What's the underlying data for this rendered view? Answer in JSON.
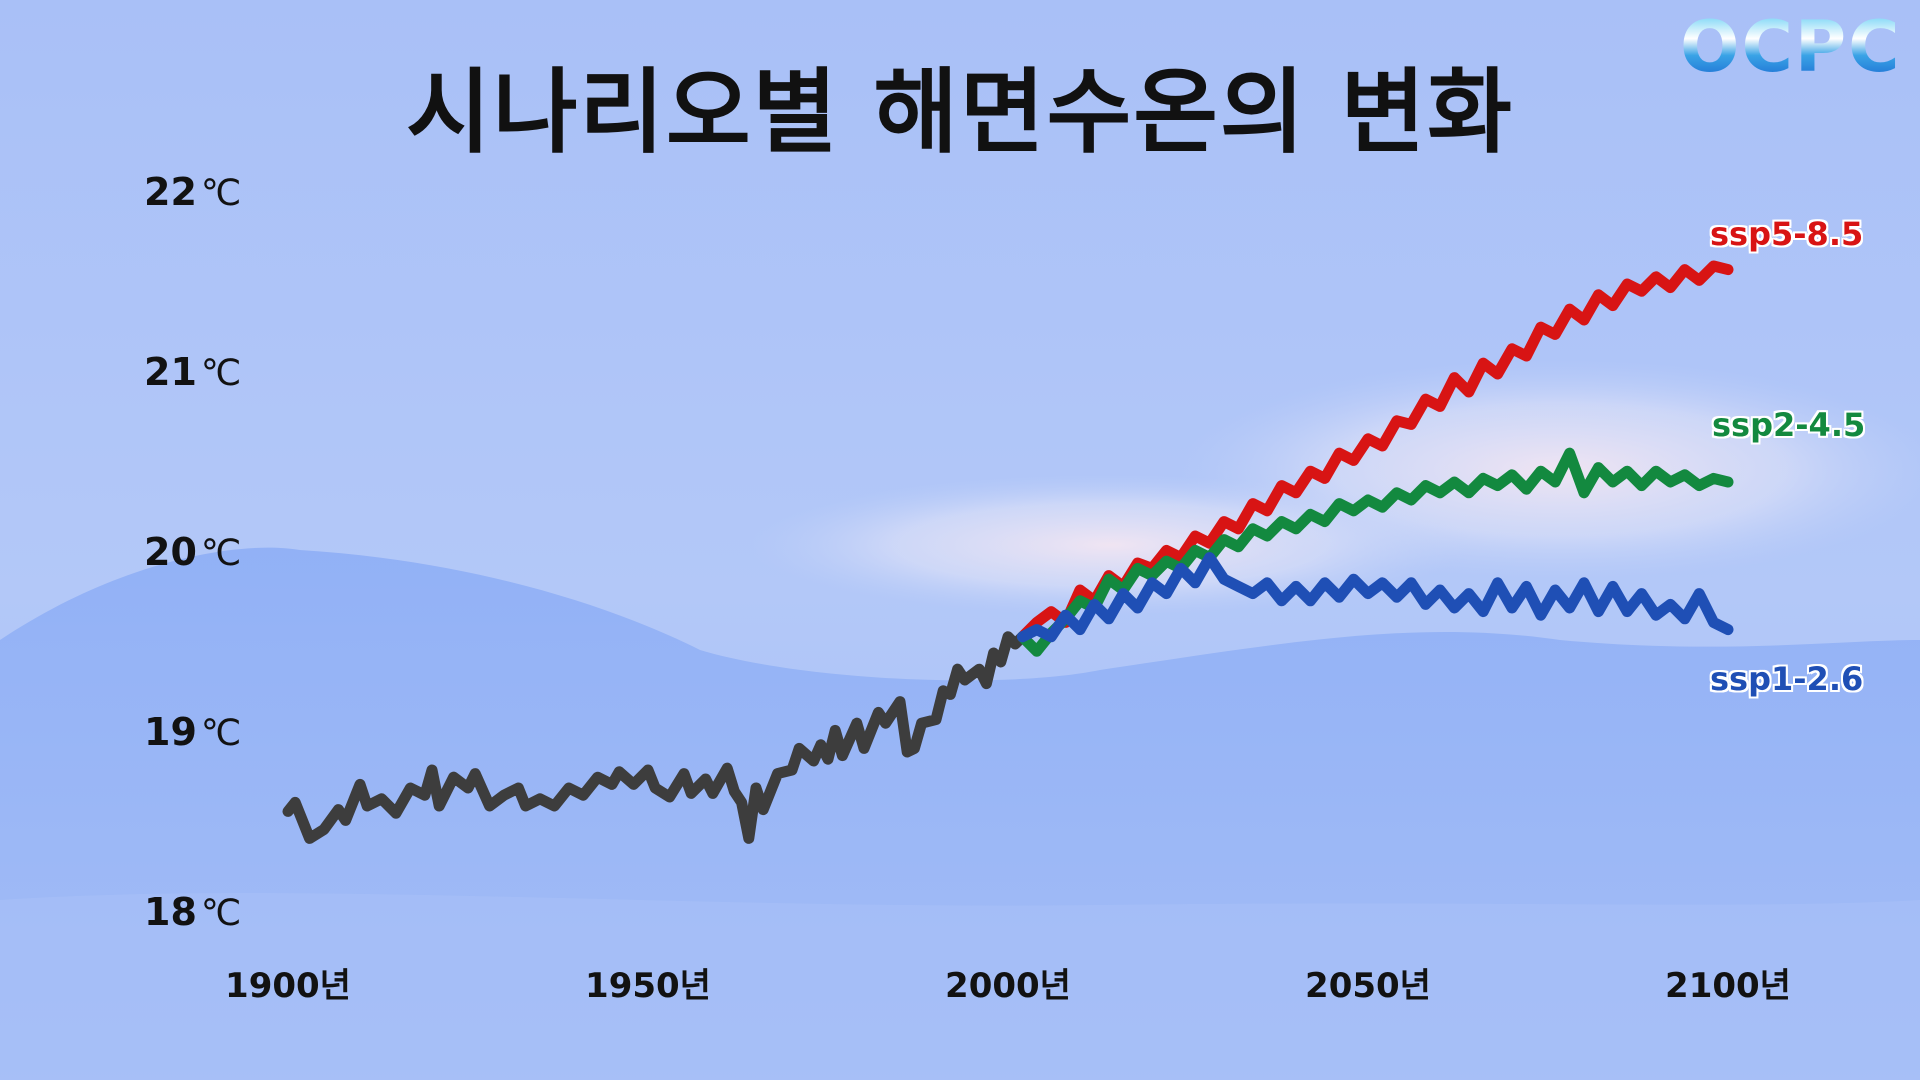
{
  "title": "시나리오별 해면수온의 변화",
  "logo": "OCPC",
  "chart_data": {
    "type": "line",
    "title": "시나리오별 해면수온의 변화",
    "xlabel": "",
    "ylabel": "",
    "xlim": [
      1900,
      2100
    ],
    "ylim": [
      18,
      22
    ],
    "y_ticks": [
      {
        "value": 22,
        "num": "22",
        "unit": "℃"
      },
      {
        "value": 21,
        "num": "21",
        "unit": "℃"
      },
      {
        "value": 20,
        "num": "20",
        "unit": "℃"
      },
      {
        "value": 19,
        "num": "19",
        "unit": "℃"
      },
      {
        "value": 18,
        "num": "18",
        "unit": "℃"
      }
    ],
    "x_ticks": [
      {
        "value": 1900,
        "label": "1900년"
      },
      {
        "value": 1950,
        "label": "1950년"
      },
      {
        "value": 2000,
        "label": "2000년"
      },
      {
        "value": 2050,
        "label": "2050년"
      },
      {
        "value": 2100,
        "label": "2100년"
      }
    ],
    "grid": false,
    "series": [
      {
        "name": "",
        "color": "#3d3d3d",
        "points": [
          [
            1900,
            18.57
          ],
          [
            1901,
            18.62
          ],
          [
            1903,
            18.42
          ],
          [
            1905,
            18.47
          ],
          [
            1907,
            18.58
          ],
          [
            1908,
            18.52
          ],
          [
            1910,
            18.72
          ],
          [
            1911,
            18.6
          ],
          [
            1913,
            18.64
          ],
          [
            1915,
            18.56
          ],
          [
            1917,
            18.7
          ],
          [
            1919,
            18.66
          ],
          [
            1920,
            18.8
          ],
          [
            1921,
            18.6
          ],
          [
            1923,
            18.76
          ],
          [
            1925,
            18.7
          ],
          [
            1926,
            18.78
          ],
          [
            1928,
            18.6
          ],
          [
            1930,
            18.66
          ],
          [
            1932,
            18.7
          ],
          [
            1933,
            18.6
          ],
          [
            1935,
            18.64
          ],
          [
            1937,
            18.6
          ],
          [
            1939,
            18.7
          ],
          [
            1941,
            18.66
          ],
          [
            1943,
            18.76
          ],
          [
            1945,
            18.72
          ],
          [
            1946,
            18.79
          ],
          [
            1948,
            18.72
          ],
          [
            1950,
            18.8
          ],
          [
            1951,
            18.7
          ],
          [
            1953,
            18.65
          ],
          [
            1955,
            18.78
          ],
          [
            1956,
            18.67
          ],
          [
            1958,
            18.75
          ],
          [
            1959,
            18.67
          ],
          [
            1961,
            18.81
          ],
          [
            1962,
            18.68
          ],
          [
            1963,
            18.62
          ],
          [
            1964,
            18.42
          ],
          [
            1965,
            18.7
          ],
          [
            1966,
            18.58
          ],
          [
            1968,
            18.78
          ],
          [
            1970,
            18.8
          ],
          [
            1971,
            18.92
          ],
          [
            1973,
            18.85
          ],
          [
            1974,
            18.94
          ],
          [
            1975,
            18.86
          ],
          [
            1976,
            19.02
          ],
          [
            1977,
            18.88
          ],
          [
            1979,
            19.06
          ],
          [
            1980,
            18.92
          ],
          [
            1982,
            19.12
          ],
          [
            1983,
            19.06
          ],
          [
            1985,
            19.18
          ],
          [
            1986,
            18.9
          ],
          [
            1987,
            18.92
          ],
          [
            1988,
            19.06
          ],
          [
            1990,
            19.08
          ],
          [
            1991,
            19.24
          ],
          [
            1992,
            19.22
          ],
          [
            1993,
            19.36
          ],
          [
            1994,
            19.3
          ],
          [
            1996,
            19.36
          ],
          [
            1997,
            19.28
          ],
          [
            1998,
            19.45
          ],
          [
            1999,
            19.4
          ],
          [
            2000,
            19.54
          ],
          [
            2001,
            19.5
          ],
          [
            2002,
            19.54
          ]
        ]
      },
      {
        "name": "ssp5-8.5",
        "color": "#d81414",
        "points": [
          [
            2002,
            19.54
          ],
          [
            2004,
            19.62
          ],
          [
            2006,
            19.68
          ],
          [
            2008,
            19.62
          ],
          [
            2010,
            19.8
          ],
          [
            2012,
            19.74
          ],
          [
            2014,
            19.88
          ],
          [
            2016,
            19.82
          ],
          [
            2018,
            19.95
          ],
          [
            2020,
            19.92
          ],
          [
            2022,
            20.02
          ],
          [
            2024,
            19.98
          ],
          [
            2026,
            20.1
          ],
          [
            2028,
            20.06
          ],
          [
            2030,
            20.18
          ],
          [
            2032,
            20.14
          ],
          [
            2034,
            20.28
          ],
          [
            2036,
            20.24
          ],
          [
            2038,
            20.38
          ],
          [
            2040,
            20.34
          ],
          [
            2042,
            20.46
          ],
          [
            2044,
            20.42
          ],
          [
            2046,
            20.56
          ],
          [
            2048,
            20.52
          ],
          [
            2050,
            20.64
          ],
          [
            2052,
            20.6
          ],
          [
            2054,
            20.74
          ],
          [
            2056,
            20.72
          ],
          [
            2058,
            20.86
          ],
          [
            2060,
            20.82
          ],
          [
            2062,
            20.98
          ],
          [
            2064,
            20.9
          ],
          [
            2066,
            21.06
          ],
          [
            2068,
            21.0
          ],
          [
            2070,
            21.14
          ],
          [
            2072,
            21.1
          ],
          [
            2074,
            21.26
          ],
          [
            2076,
            21.22
          ],
          [
            2078,
            21.36
          ],
          [
            2080,
            21.3
          ],
          [
            2082,
            21.44
          ],
          [
            2084,
            21.38
          ],
          [
            2086,
            21.5
          ],
          [
            2088,
            21.46
          ],
          [
            2090,
            21.54
          ],
          [
            2092,
            21.48
          ],
          [
            2094,
            21.58
          ],
          [
            2096,
            21.52
          ],
          [
            2098,
            21.6
          ],
          [
            2100,
            21.58
          ]
        ]
      },
      {
        "name": "ssp2-4.5",
        "color": "#13893f",
        "points": [
          [
            2002,
            19.54
          ],
          [
            2004,
            19.46
          ],
          [
            2006,
            19.56
          ],
          [
            2008,
            19.64
          ],
          [
            2010,
            19.74
          ],
          [
            2012,
            19.7
          ],
          [
            2014,
            19.86
          ],
          [
            2016,
            19.8
          ],
          [
            2018,
            19.92
          ],
          [
            2020,
            19.88
          ],
          [
            2022,
            19.96
          ],
          [
            2024,
            19.92
          ],
          [
            2026,
            20.02
          ],
          [
            2028,
            19.98
          ],
          [
            2030,
            20.08
          ],
          [
            2032,
            20.04
          ],
          [
            2034,
            20.14
          ],
          [
            2036,
            20.1
          ],
          [
            2038,
            20.18
          ],
          [
            2040,
            20.14
          ],
          [
            2042,
            20.22
          ],
          [
            2044,
            20.18
          ],
          [
            2046,
            20.28
          ],
          [
            2048,
            20.24
          ],
          [
            2050,
            20.3
          ],
          [
            2052,
            20.26
          ],
          [
            2054,
            20.34
          ],
          [
            2056,
            20.3
          ],
          [
            2058,
            20.38
          ],
          [
            2060,
            20.34
          ],
          [
            2062,
            20.4
          ],
          [
            2064,
            20.34
          ],
          [
            2066,
            20.42
          ],
          [
            2068,
            20.38
          ],
          [
            2070,
            20.44
          ],
          [
            2072,
            20.36
          ],
          [
            2074,
            20.46
          ],
          [
            2076,
            20.4
          ],
          [
            2078,
            20.56
          ],
          [
            2080,
            20.34
          ],
          [
            2082,
            20.48
          ],
          [
            2084,
            20.4
          ],
          [
            2086,
            20.46
          ],
          [
            2088,
            20.38
          ],
          [
            2090,
            20.46
          ],
          [
            2092,
            20.4
          ],
          [
            2094,
            20.44
          ],
          [
            2096,
            20.38
          ],
          [
            2098,
            20.42
          ],
          [
            2100,
            20.4
          ]
        ]
      },
      {
        "name": "ssp1-2.6",
        "color": "#1f4fb5",
        "points": [
          [
            2002,
            19.54
          ],
          [
            2004,
            19.58
          ],
          [
            2006,
            19.54
          ],
          [
            2008,
            19.66
          ],
          [
            2010,
            19.58
          ],
          [
            2012,
            19.72
          ],
          [
            2014,
            19.64
          ],
          [
            2016,
            19.78
          ],
          [
            2018,
            19.7
          ],
          [
            2020,
            19.84
          ],
          [
            2022,
            19.78
          ],
          [
            2024,
            19.92
          ],
          [
            2026,
            19.84
          ],
          [
            2028,
            19.98
          ],
          [
            2030,
            19.86
          ],
          [
            2032,
            19.82
          ],
          [
            2034,
            19.78
          ],
          [
            2036,
            19.84
          ],
          [
            2038,
            19.74
          ],
          [
            2040,
            19.82
          ],
          [
            2042,
            19.74
          ],
          [
            2044,
            19.84
          ],
          [
            2046,
            19.76
          ],
          [
            2048,
            19.86
          ],
          [
            2050,
            19.78
          ],
          [
            2052,
            19.84
          ],
          [
            2054,
            19.76
          ],
          [
            2056,
            19.84
          ],
          [
            2058,
            19.72
          ],
          [
            2060,
            19.8
          ],
          [
            2062,
            19.7
          ],
          [
            2064,
            19.78
          ],
          [
            2066,
            19.68
          ],
          [
            2068,
            19.84
          ],
          [
            2070,
            19.7
          ],
          [
            2072,
            19.82
          ],
          [
            2074,
            19.66
          ],
          [
            2076,
            19.8
          ],
          [
            2078,
            19.7
          ],
          [
            2080,
            19.84
          ],
          [
            2082,
            19.68
          ],
          [
            2084,
            19.82
          ],
          [
            2086,
            19.68
          ],
          [
            2088,
            19.78
          ],
          [
            2090,
            19.66
          ],
          [
            2092,
            19.72
          ],
          [
            2094,
            19.64
          ],
          [
            2096,
            19.78
          ],
          [
            2098,
            19.62
          ],
          [
            2100,
            19.58
          ]
        ]
      }
    ]
  }
}
